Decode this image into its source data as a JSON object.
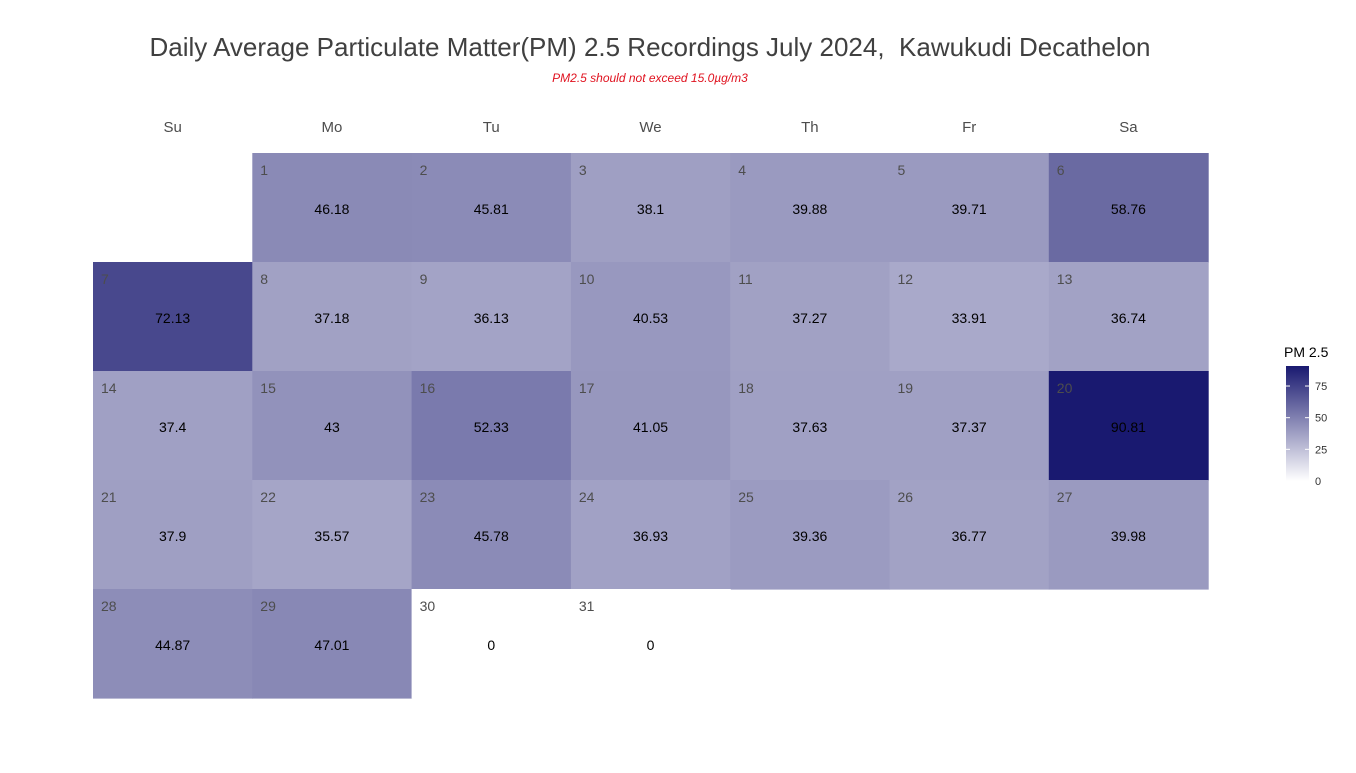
{
  "chart_data": {
    "type": "heatmap",
    "title": "Daily Average Particulate Matter(PM) 2.5 Recordings July 2024,  Kawukudi Decathelon",
    "subtitle": "PM2.5 should not exceed 15.0µg/m3",
    "weekdays": [
      "Su",
      "Mo",
      "Tu",
      "We",
      "Th",
      "Fr",
      "Sa"
    ],
    "first_weekday_index": 1,
    "days": [
      1,
      2,
      3,
      4,
      5,
      6,
      7,
      8,
      9,
      10,
      11,
      12,
      13,
      14,
      15,
      16,
      17,
      18,
      19,
      20,
      21,
      22,
      23,
      24,
      25,
      26,
      27,
      28,
      29,
      30,
      31
    ],
    "values": [
      46.18,
      45.81,
      38.1,
      39.88,
      39.71,
      58.76,
      72.13,
      37.18,
      36.13,
      40.53,
      37.27,
      33.91,
      36.74,
      37.4,
      43,
      52.33,
      41.05,
      37.63,
      37.37,
      90.81,
      37.9,
      35.57,
      45.78,
      36.93,
      39.36,
      36.77,
      39.98,
      44.87,
      47.01,
      0,
      0
    ],
    "value_labels": [
      "46.18",
      "45.81",
      "38.1",
      "39.88",
      "39.71",
      "58.76",
      "72.13",
      "37.18",
      "36.13",
      "40.53",
      "37.27",
      "33.91",
      "36.74",
      "37.4",
      "43",
      "52.33",
      "41.05",
      "37.63",
      "37.37",
      "90.81",
      "37.9",
      "35.57",
      "45.78",
      "36.93",
      "39.36",
      "36.77",
      "39.98",
      "44.87",
      "47.01",
      "0",
      "0"
    ],
    "legend": {
      "title": "PM 2.5",
      "ticks": [
        0,
        25,
        50,
        75
      ],
      "range": [
        0,
        90.81
      ],
      "position": "right",
      "low_color": "#ffffff",
      "high_color": "#191970"
    }
  }
}
